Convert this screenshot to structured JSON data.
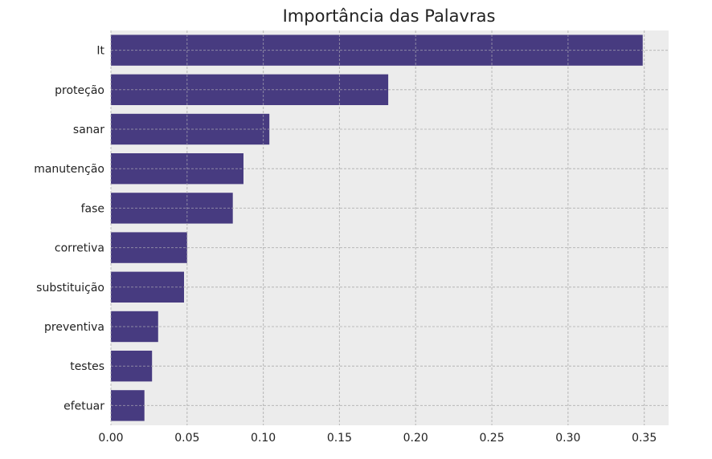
{
  "chart_data": {
    "type": "bar",
    "orientation": "horizontal",
    "title": "Importância das Palavras",
    "xlabel": "",
    "ylabel": "",
    "categories": [
      "It",
      "proteção",
      "sanar",
      "manutenção",
      "fase",
      "corretiva",
      "substituição",
      "preventiva",
      "testes",
      "efetuar"
    ],
    "values": [
      0.349,
      0.182,
      0.104,
      0.087,
      0.08,
      0.05,
      0.048,
      0.031,
      0.027,
      0.022
    ],
    "xlim": [
      0,
      0.366
    ],
    "xticks": [
      0.0,
      0.05,
      0.1,
      0.15,
      0.2,
      0.25,
      0.3,
      0.35
    ],
    "xtick_labels": [
      "0.00",
      "0.05",
      "0.10",
      "0.15",
      "0.20",
      "0.25",
      "0.30",
      "0.35"
    ],
    "grid": true,
    "bar_color": "#473b80",
    "background_color": "#ececec",
    "grid_color": "#bcbcbc"
  }
}
